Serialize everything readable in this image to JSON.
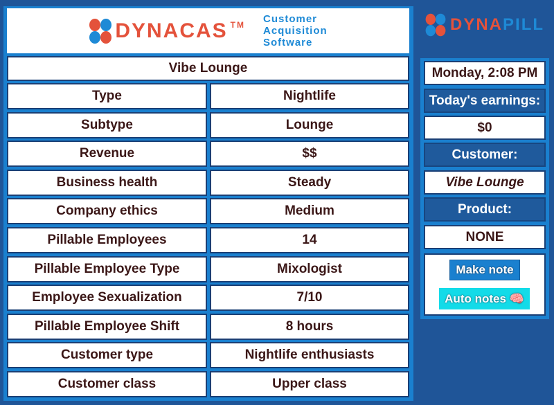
{
  "header": {
    "brand": "DYNACAS",
    "trademark": "TM",
    "tagline": [
      "Customer",
      "Acquisition",
      "Software"
    ]
  },
  "sidebar_brand": {
    "part1": "DYNA",
    "part2": "PILL"
  },
  "title": "Vibe Lounge",
  "rows": [
    {
      "label": "Type",
      "value": "Nightlife"
    },
    {
      "label": "Subtype",
      "value": "Lounge"
    },
    {
      "label": "Revenue",
      "value": "$$"
    },
    {
      "label": "Business health",
      "value": "Steady"
    },
    {
      "label": "Company ethics",
      "value": "Medium"
    },
    {
      "label": "Pillable Employees",
      "value": "14"
    },
    {
      "label": "Pillable Employee Type",
      "value": "Mixologist"
    },
    {
      "label": "Employee Sexualization",
      "value": "7/10"
    },
    {
      "label": "Pillable Employee Shift",
      "value": "8 hours"
    },
    {
      "label": "Customer type",
      "value": "Nightlife enthusiasts"
    },
    {
      "label": "Customer class",
      "value": "Upper class"
    }
  ],
  "side": {
    "datetime": "Monday, 2:08 PM",
    "earnings_label": "Today's earnings:",
    "earnings": "$0",
    "customer_label": "Customer:",
    "customer": "Vibe Lounge",
    "product_label": "Product:",
    "product": "NONE",
    "make_note": "Make note",
    "auto_notes": "Auto notes 🧠"
  },
  "colors": {
    "background": "#1f5598",
    "accent": "#1a80cf",
    "brand_red": "#e4523b",
    "brand_blue": "#1e8ad6",
    "auto_notes": "#13dbe8"
  }
}
